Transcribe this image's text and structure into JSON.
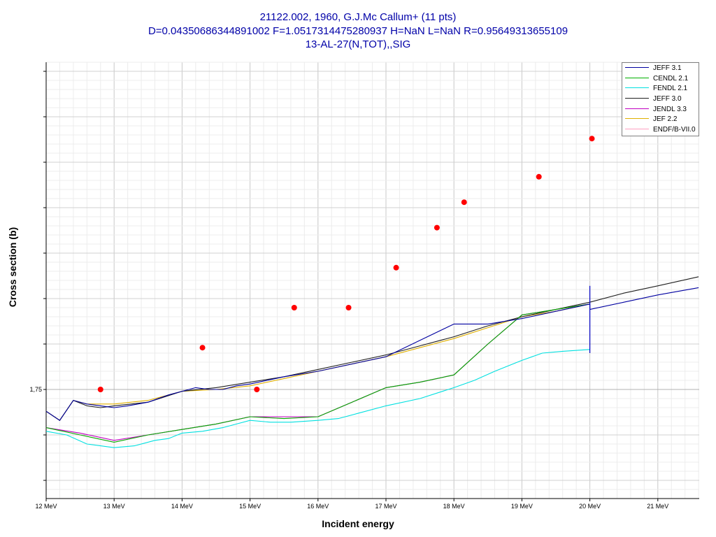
{
  "title": {
    "line1": "21122.002, 1960, G.J.Mc Callum+ (11 pts)",
    "line2": "D=0.04350686344891002 F=1.0517314475280937 H=NaN L=NaN R=0.95649313655109",
    "line3": "13-AL-27(N,TOT),,SIG"
  },
  "chart_data": {
    "type": "line",
    "xlabel": "Incident energy",
    "ylabel": "Cross section (b)",
    "xlim": [
      12.0,
      21.6
    ],
    "ylim": [
      1.6,
      2.0
    ],
    "x_ticks": [
      12,
      13,
      14,
      15,
      16,
      17,
      18,
      19,
      20,
      21
    ],
    "x_tick_labels": [
      "12 MeV",
      "13 MeV",
      "14 MeV",
      "15 MeV",
      "16 MeV",
      "17 MeV",
      "18 MeV",
      "19 MeV",
      "20 MeV",
      "21 MeV"
    ],
    "y_ticks": [
      1.75
    ],
    "y_tick_labels": [
      "1,75"
    ],
    "grid": true,
    "legend_position": "top-right",
    "series": [
      {
        "name": "JEFF 3.1",
        "color": "#0000a0",
        "x": [
          12.0,
          12.2,
          12.4,
          12.6,
          12.8,
          13.0,
          13.2,
          13.5,
          13.8,
          14.0,
          14.2,
          14.4,
          14.6,
          14.8,
          15.0,
          15.5,
          16.0,
          16.5,
          17.0,
          17.5,
          18.0,
          18.5,
          19.0,
          19.5,
          20.0,
          20.0,
          20.5,
          21.0,
          21.6
        ],
        "y": [
          1.738,
          1.733,
          1.744,
          1.742,
          1.741,
          1.74,
          1.741,
          1.743,
          1.747,
          1.749,
          1.751,
          1.75,
          1.75,
          1.752,
          1.753,
          1.757,
          1.76,
          1.764,
          1.768,
          1.777,
          1.786,
          1.786,
          1.789,
          1.793,
          1.797,
          1.794,
          1.798,
          1.802,
          1.806
        ]
      },
      {
        "name": "CENDL 2.1",
        "color": "#00b000",
        "x": [
          12.0,
          12.5,
          13.0,
          13.5,
          14.0,
          14.5,
          15.0,
          15.5,
          16.0,
          16.5,
          17.0,
          17.5,
          18.0,
          18.5,
          19.0,
          19.5,
          20.0
        ],
        "y": [
          1.729,
          1.725,
          1.721,
          1.725,
          1.728,
          1.731,
          1.735,
          1.734,
          1.735,
          1.743,
          1.751,
          1.754,
          1.758,
          1.775,
          1.791,
          1.794,
          1.797
        ]
      },
      {
        "name": "FENDL 2.1",
        "color": "#00e0e0",
        "x": [
          12.0,
          12.3,
          12.6,
          12.8,
          13.0,
          13.3,
          13.6,
          13.8,
          14.0,
          14.3,
          14.6,
          14.8,
          15.0,
          15.3,
          15.6,
          16.0,
          16.3,
          16.6,
          17.0,
          17.5,
          18.0,
          18.3,
          18.6,
          19.0,
          19.3,
          19.6,
          20.0
        ],
        "y": [
          1.727,
          1.725,
          1.72,
          1.719,
          1.718,
          1.719,
          1.722,
          1.723,
          1.726,
          1.727,
          1.729,
          1.731,
          1.733,
          1.732,
          1.732,
          1.733,
          1.734,
          1.737,
          1.741,
          1.745,
          1.751,
          1.755,
          1.76,
          1.766,
          1.77,
          1.771,
          1.772
        ]
      },
      {
        "name": "JEFF 3.0",
        "color": "#202020",
        "x": [
          12.0,
          12.2,
          12.4,
          12.6,
          12.8,
          13.0,
          13.5,
          14.0,
          14.5,
          15.0,
          15.5,
          16.0,
          16.5,
          17.0,
          17.5,
          18.0,
          18.5,
          19.0,
          19.5,
          20.0,
          20.5,
          21.0,
          21.6
        ],
        "y": [
          1.738,
          1.733,
          1.744,
          1.741,
          1.74,
          1.741,
          1.743,
          1.749,
          1.751,
          1.754,
          1.757,
          1.761,
          1.765,
          1.769,
          1.774,
          1.779,
          1.785,
          1.79,
          1.794,
          1.798,
          1.803,
          1.807,
          1.812
        ]
      },
      {
        "name": "JENDL 3.3",
        "color": "#c000c0",
        "x": [
          12.0,
          12.5,
          13.0,
          13.5,
          14.0,
          14.5,
          15.0,
          15.5,
          16.0,
          16.5,
          17.0,
          17.5,
          18.0,
          18.5,
          19.0,
          19.5,
          20.0
        ],
        "y": [
          1.729,
          1.726,
          1.722,
          1.725,
          1.728,
          1.731,
          1.735,
          1.735,
          1.735,
          1.743,
          1.751,
          1.754,
          1.758,
          1.775,
          1.791,
          1.794,
          1.797
        ]
      },
      {
        "name": "JEF 2.2",
        "color": "#e0b000",
        "x": [
          12.0,
          12.2,
          12.4,
          12.6,
          12.8,
          13.0,
          13.5,
          14.0,
          14.5,
          15.0,
          15.5,
          16.0,
          16.5,
          17.0,
          17.5,
          18.0,
          18.5,
          19.0,
          19.5,
          20.0
        ],
        "y": [
          1.738,
          1.733,
          1.744,
          1.742,
          1.742,
          1.742,
          1.744,
          1.749,
          1.75,
          1.752,
          1.756,
          1.76,
          1.764,
          1.768,
          1.773,
          1.778,
          1.784,
          1.79,
          1.793,
          1.797
        ]
      },
      {
        "name": "ENDF/B-VII.0",
        "color": "#ffa0c0",
        "x": [
          12.0,
          12.5,
          13.0,
          13.5,
          14.0,
          14.5,
          15.0,
          15.5,
          16.0,
          16.5,
          17.0,
          17.5,
          18.0,
          18.5,
          19.0,
          19.5,
          20.0
        ],
        "y": [
          1.729,
          1.725,
          1.721,
          1.725,
          1.728,
          1.731,
          1.735,
          1.734,
          1.735,
          1.743,
          1.751,
          1.754,
          1.758,
          1.775,
          1.791,
          1.794,
          1.797
        ]
      }
    ],
    "experimental": {
      "color": "#ff0000",
      "x": [
        12.8,
        14.3,
        15.1,
        15.65,
        16.45,
        17.15,
        17.75,
        18.15,
        19.25,
        20.03
      ],
      "y": [
        1.75,
        1.773,
        1.75,
        1.795,
        1.795,
        1.817,
        1.839,
        1.853,
        1.867,
        1.888
      ]
    },
    "error_bar": {
      "x": 20.0,
      "y_low": 1.77,
      "y_high": 1.807,
      "color": "#0000c0"
    }
  }
}
